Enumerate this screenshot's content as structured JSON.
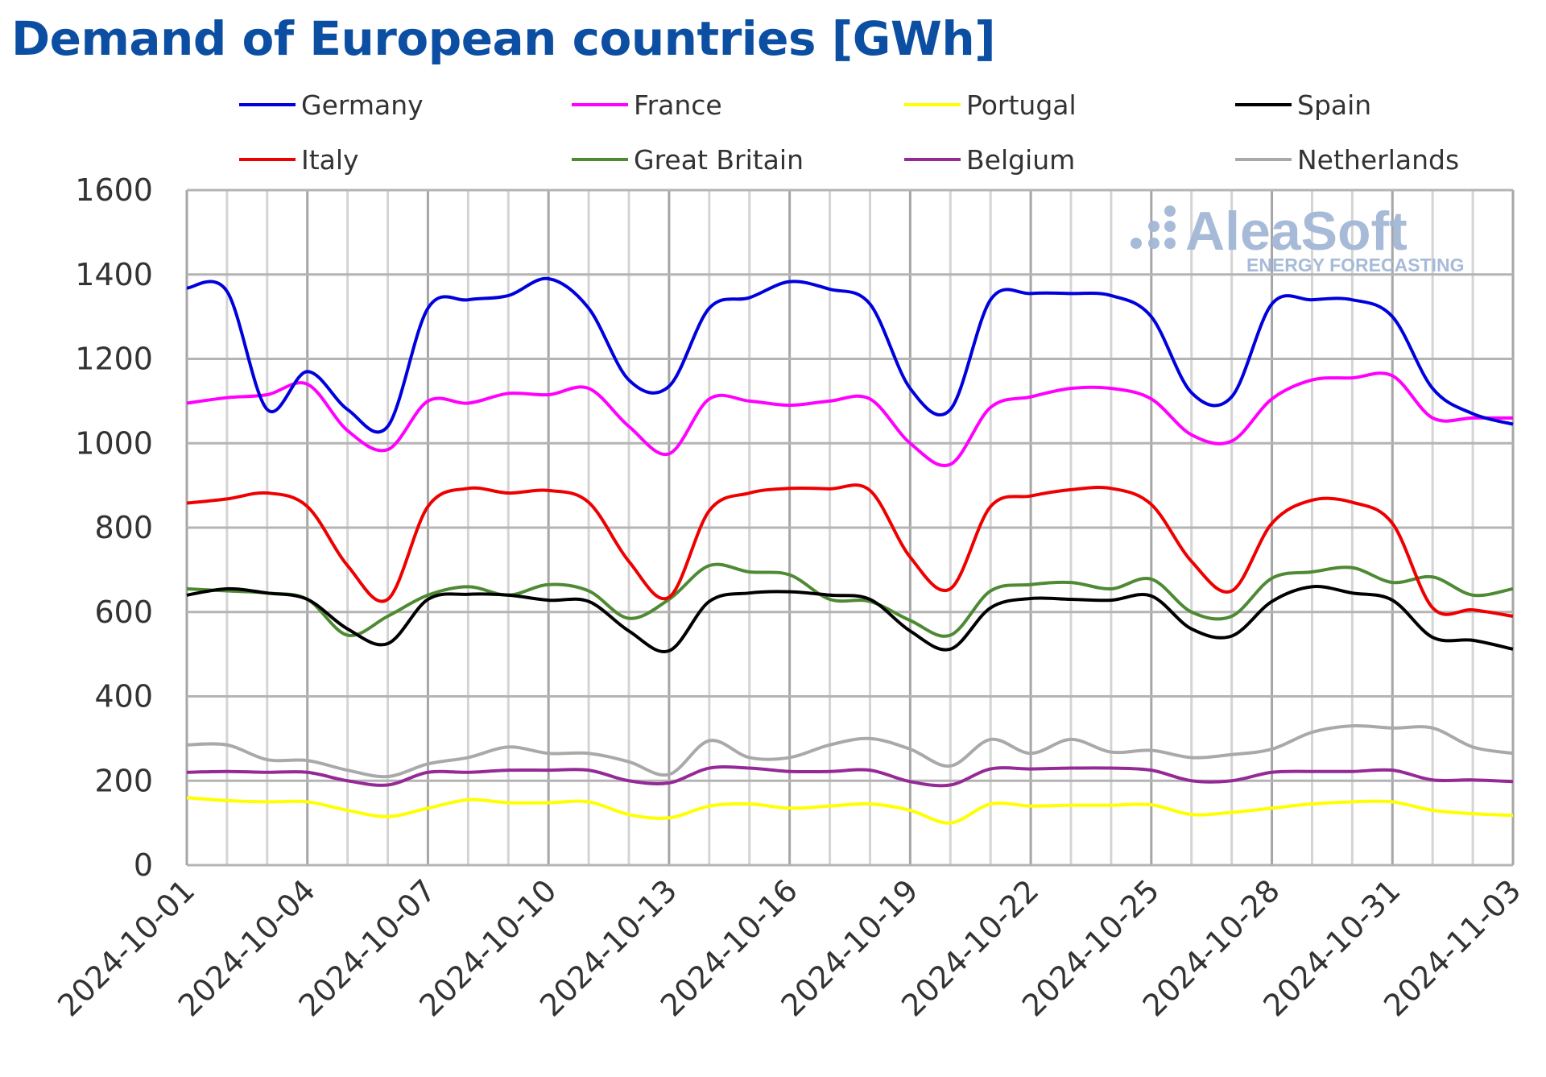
{
  "chart_data": {
    "type": "line",
    "title": "Demand of European countries [GWh]",
    "xlabel": "",
    "ylabel": "",
    "ylim": [
      0,
      1600
    ],
    "yticks": [
      0,
      200,
      400,
      600,
      800,
      1000,
      1200,
      1400,
      1600
    ],
    "grid": true,
    "legend_position": "top",
    "x_start": "2024-10-01",
    "x_end": "2024-11-03",
    "xtick_labels": [
      "2024-10-01",
      "2024-10-04",
      "2024-10-07",
      "2024-10-10",
      "2024-10-13",
      "2024-10-16",
      "2024-10-19",
      "2024-10-22",
      "2024-10-25",
      "2024-10-28",
      "2024-10-31",
      "2024-11-03"
    ],
    "x": [
      "2024-10-01",
      "2024-10-02",
      "2024-10-03",
      "2024-10-04",
      "2024-10-05",
      "2024-10-06",
      "2024-10-07",
      "2024-10-08",
      "2024-10-09",
      "2024-10-10",
      "2024-10-11",
      "2024-10-12",
      "2024-10-13",
      "2024-10-14",
      "2024-10-15",
      "2024-10-16",
      "2024-10-17",
      "2024-10-18",
      "2024-10-19",
      "2024-10-20",
      "2024-10-21",
      "2024-10-22",
      "2024-10-23",
      "2024-10-24",
      "2024-10-25",
      "2024-10-26",
      "2024-10-27",
      "2024-10-28",
      "2024-10-29",
      "2024-10-30",
      "2024-10-31",
      "2024-11-01",
      "2024-11-02",
      "2024-11-03"
    ],
    "series": [
      {
        "name": "Germany",
        "color": "#0000dd",
        "values": [
          1368,
          1360,
          1080,
          1170,
          1080,
          1040,
          1320,
          1340,
          1350,
          1390,
          1320,
          1150,
          1135,
          1320,
          1345,
          1383,
          1365,
          1330,
          1130,
          1080,
          1340,
          1355,
          1355,
          1350,
          1300,
          1120,
          1110,
          1330,
          1340,
          1340,
          1300,
          1130,
          1070,
          1045
        ]
      },
      {
        "name": "France",
        "color": "#ff00ff",
        "values": [
          1095,
          1108,
          1115,
          1140,
          1030,
          985,
          1100,
          1095,
          1118,
          1115,
          1130,
          1040,
          975,
          1105,
          1100,
          1090,
          1100,
          1105,
          1000,
          950,
          1085,
          1110,
          1130,
          1130,
          1105,
          1020,
          1005,
          1105,
          1150,
          1155,
          1160,
          1060,
          1060,
          1060
        ]
      },
      {
        "name": "Portugal",
        "color": "#ffff00",
        "values": [
          160,
          153,
          150,
          150,
          130,
          115,
          135,
          155,
          148,
          148,
          150,
          120,
          112,
          140,
          145,
          135,
          140,
          145,
          130,
          100,
          145,
          140,
          142,
          142,
          143,
          120,
          125,
          135,
          145,
          150,
          150,
          130,
          122,
          118
        ]
      },
      {
        "name": "Spain",
        "color": "#000000",
        "values": [
          640,
          655,
          645,
          630,
          560,
          525,
          630,
          642,
          640,
          628,
          625,
          555,
          508,
          625,
          645,
          648,
          640,
          630,
          555,
          512,
          610,
          632,
          630,
          628,
          638,
          560,
          543,
          625,
          660,
          645,
          628,
          540,
          533,
          512
        ]
      },
      {
        "name": "Italy",
        "color": "#ee0000",
        "values": [
          858,
          868,
          882,
          850,
          710,
          630,
          850,
          893,
          882,
          888,
          860,
          720,
          635,
          840,
          882,
          893,
          892,
          888,
          730,
          655,
          850,
          875,
          890,
          893,
          855,
          720,
          650,
          810,
          865,
          860,
          810,
          610,
          605,
          590
        ]
      },
      {
        "name": "Great Britain",
        "color": "#4e8a34",
        "values": [
          655,
          650,
          645,
          630,
          545,
          590,
          640,
          660,
          640,
          665,
          650,
          585,
          630,
          710,
          695,
          688,
          630,
          625,
          580,
          545,
          650,
          665,
          670,
          655,
          678,
          600,
          590,
          680,
          695,
          705,
          670,
          683,
          640,
          655
        ]
      },
      {
        "name": "Belgium",
        "color": "#952a97",
        "values": [
          220,
          222,
          220,
          220,
          200,
          190,
          220,
          220,
          225,
          225,
          225,
          200,
          195,
          230,
          230,
          222,
          222,
          225,
          198,
          190,
          228,
          228,
          230,
          230,
          225,
          200,
          200,
          220,
          222,
          222,
          225,
          202,
          202,
          198
        ]
      },
      {
        "name": "Netherlands",
        "color": "#a9a9a9",
        "values": [
          285,
          285,
          250,
          248,
          225,
          210,
          240,
          255,
          280,
          265,
          265,
          245,
          215,
          295,
          255,
          255,
          285,
          300,
          275,
          235,
          298,
          265,
          298,
          268,
          272,
          255,
          262,
          275,
          315,
          330,
          325,
          325,
          280,
          265
        ]
      }
    ]
  },
  "logo": {
    "name": "AleaSoft",
    "tagline": "ENERGY FORECASTING",
    "color": "#a3b8d8"
  }
}
